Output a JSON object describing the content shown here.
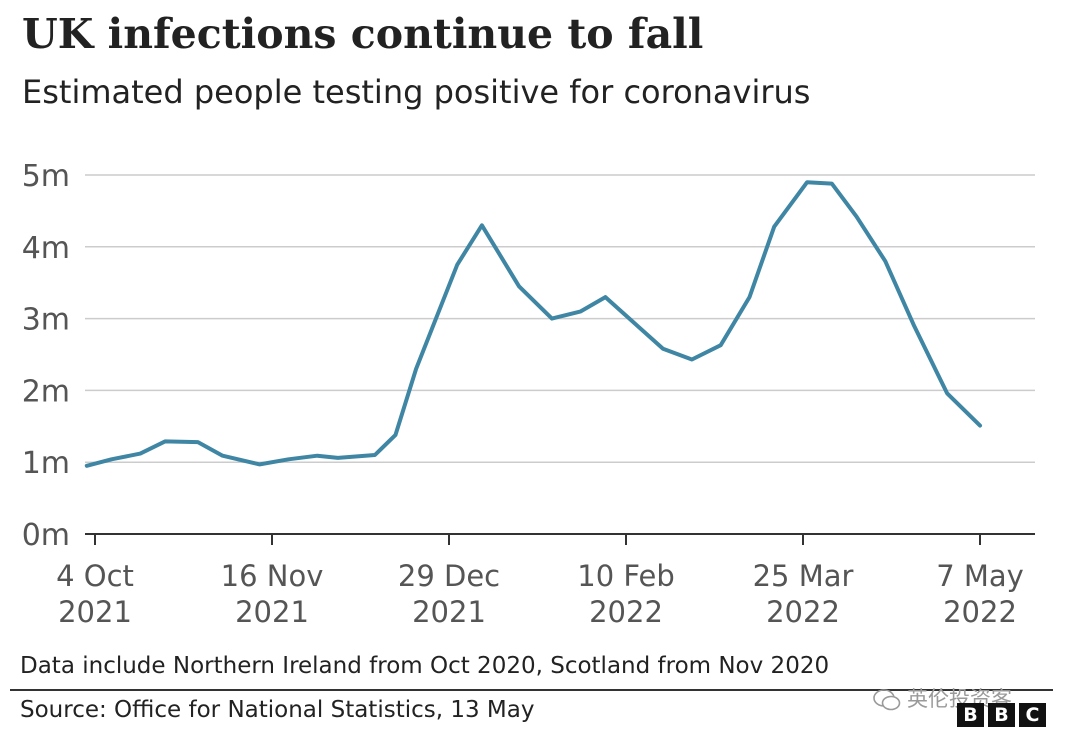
{
  "header": {
    "title": "UK infections continue to fall",
    "subtitle": "Estimated people testing positive for coronavirus"
  },
  "footer": {
    "footnote": "Data include Northern Ireland from Oct 2020, Scotland from Nov 2020",
    "source": "Source: Office for National Statistics, 13 May",
    "watermark": "英伦投资客",
    "logo_letters": [
      "B",
      "B",
      "C"
    ]
  },
  "chart_data": {
    "type": "line",
    "title": "UK infections continue to fall",
    "subtitle": "Estimated people testing positive for coronavirus",
    "xlabel": "",
    "ylabel": "",
    "ylim": [
      0,
      5000000
    ],
    "y_ticks": [
      {
        "value": 0,
        "label": "0m"
      },
      {
        "value": 1000000,
        "label": "1m"
      },
      {
        "value": 2000000,
        "label": "2m"
      },
      {
        "value": 3000000,
        "label": "3m"
      },
      {
        "value": 4000000,
        "label": "4m"
      },
      {
        "value": 5000000,
        "label": "5m"
      }
    ],
    "x_ticks": [
      {
        "date": "2021-10-04",
        "line1": "4 Oct",
        "line2": "2021"
      },
      {
        "date": "2021-11-16",
        "line1": "16 Nov",
        "line2": "2021"
      },
      {
        "date": "2021-12-29",
        "line1": "29 Dec",
        "line2": "2021"
      },
      {
        "date": "2022-02-10",
        "line1": "10 Feb",
        "line2": "2022"
      },
      {
        "date": "2022-03-25",
        "line1": "25 Mar",
        "line2": "2022"
      },
      {
        "date": "2022-05-07",
        "line1": "7 May",
        "line2": "2022"
      }
    ],
    "grid": true,
    "line_color": "#3f86a4",
    "grid_color": "#cccccc",
    "series": [
      {
        "name": "",
        "points": [
          {
            "x": "2021-10-02",
            "y": 950000
          },
          {
            "x": "2021-10-08",
            "y": 1040000
          },
          {
            "x": "2021-10-15",
            "y": 1120000
          },
          {
            "x": "2021-10-21",
            "y": 1290000
          },
          {
            "x": "2021-10-29",
            "y": 1280000
          },
          {
            "x": "2021-11-04",
            "y": 1090000
          },
          {
            "x": "2021-11-13",
            "y": 970000
          },
          {
            "x": "2021-11-20",
            "y": 1040000
          },
          {
            "x": "2021-11-27",
            "y": 1090000
          },
          {
            "x": "2021-12-02",
            "y": 1060000
          },
          {
            "x": "2021-12-11",
            "y": 1100000
          },
          {
            "x": "2021-12-16",
            "y": 1380000
          },
          {
            "x": "2021-12-21",
            "y": 2300000
          },
          {
            "x": "2021-12-31",
            "y": 3750000
          },
          {
            "x": "2022-01-06",
            "y": 4300000
          },
          {
            "x": "2022-01-15",
            "y": 3450000
          },
          {
            "x": "2022-01-23",
            "y": 3000000
          },
          {
            "x": "2022-01-30",
            "y": 3100000
          },
          {
            "x": "2022-02-05",
            "y": 3300000
          },
          {
            "x": "2022-02-19",
            "y": 2580000
          },
          {
            "x": "2022-02-26",
            "y": 2430000
          },
          {
            "x": "2022-03-05",
            "y": 2630000
          },
          {
            "x": "2022-03-12",
            "y": 3300000
          },
          {
            "x": "2022-03-18",
            "y": 4280000
          },
          {
            "x": "2022-03-26",
            "y": 4900000
          },
          {
            "x": "2022-04-01",
            "y": 4880000
          },
          {
            "x": "2022-04-07",
            "y": 4420000
          },
          {
            "x": "2022-04-14",
            "y": 3800000
          },
          {
            "x": "2022-04-21",
            "y": 2900000
          },
          {
            "x": "2022-04-29",
            "y": 1960000
          },
          {
            "x": "2022-05-07",
            "y": 1510000
          }
        ]
      }
    ]
  }
}
